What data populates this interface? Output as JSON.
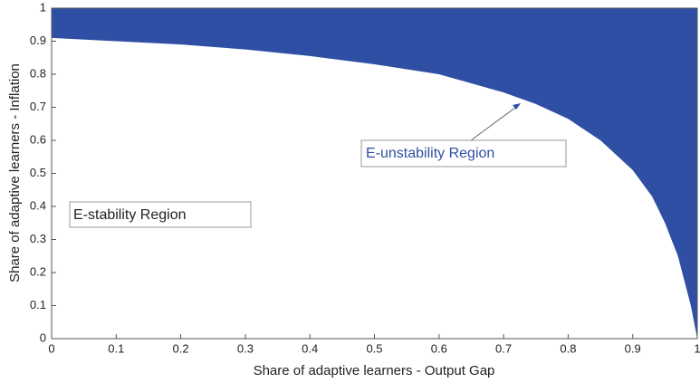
{
  "chart_data": {
    "type": "area",
    "x_label": "Share of adaptive learners - Output Gap",
    "y_label": "Share of adaptive learners - Inflation",
    "annotations": [
      "E-unstability Region",
      "E-stability Region"
    ],
    "color": "#2e4fa3",
    "x": [
      0,
      0.1,
      0.2,
      0.3,
      0.4,
      0.5,
      0.6,
      0.7,
      0.75,
      0.8,
      0.85,
      0.9,
      0.93,
      0.95,
      0.97,
      0.99,
      1.0
    ],
    "values": [
      0.91,
      0.9,
      0.89,
      0.875,
      0.855,
      0.83,
      0.8,
      0.745,
      0.71,
      0.665,
      0.6,
      0.51,
      0.43,
      0.35,
      0.25,
      0.1,
      0
    ],
    "xlim": [
      0,
      1
    ],
    "ylim": [
      0,
      1
    ],
    "xticks": [
      0,
      0.1,
      0.2,
      0.3,
      0.4,
      0.5,
      0.6,
      0.7,
      0.8,
      0.9,
      1
    ],
    "yticks": [
      0,
      0.1,
      0.2,
      0.3,
      0.4,
      0.5,
      0.6,
      0.7,
      0.8,
      0.9,
      1
    ]
  }
}
